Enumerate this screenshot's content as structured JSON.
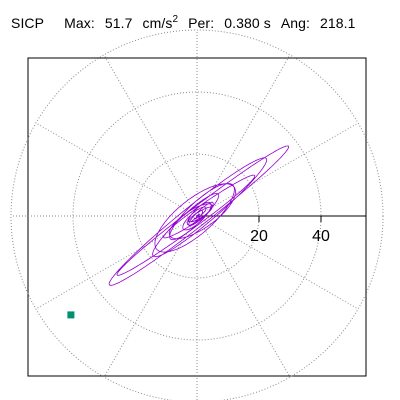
{
  "header": {
    "station": "SICP",
    "max_label": "Max:",
    "max_value": "51.7",
    "max_unit": "cm/s",
    "max_unit_exp": "2",
    "per_label": "Per:",
    "per_value": "0.380 s",
    "ang_label": "Ang:",
    "ang_value": "218.1"
  },
  "chart_data": {
    "type": "line",
    "title": "SICP   Max:  51.7 cm/s2  Per:  0.380 s  Ang: 218.1",
    "radial_ticks": [
      20,
      40
    ],
    "rlim": [
      0,
      60
    ],
    "grid": true,
    "grid_rings": [
      20,
      40,
      60
    ],
    "grid_spokes_deg": [
      0,
      30,
      60,
      90,
      120,
      150,
      180,
      210,
      240,
      270,
      300,
      330
    ],
    "trace_color": "#9400d3",
    "marker_color": "#009070",
    "orbit_shape": "elongated ellipses with principal axis along 218.1 deg (southwest-northeast)",
    "peak": {
      "value": 51.7,
      "angle_deg": 218.1
    }
  }
}
